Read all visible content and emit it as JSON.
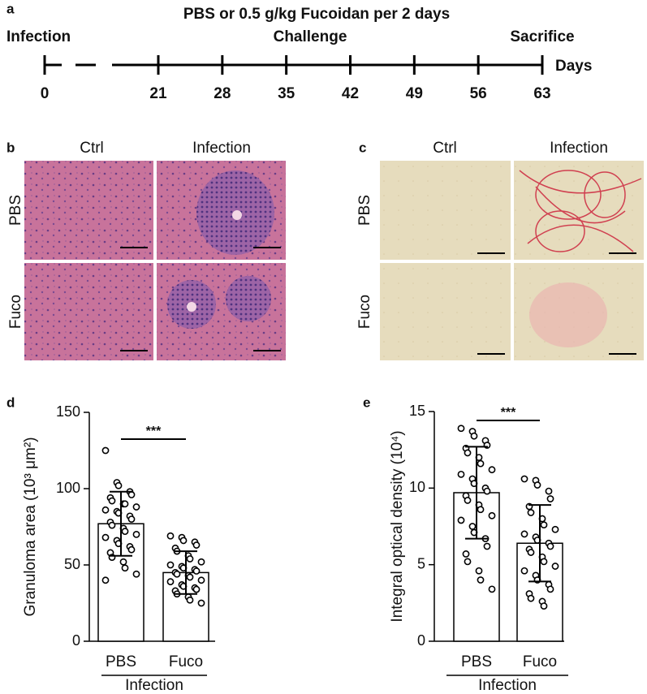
{
  "panel_a": {
    "label": "a",
    "title": "PBS or 0.5 g/kg Fucoidan per 2 days",
    "phases": [
      "Infection",
      "Challenge",
      "Sacrifice"
    ],
    "axis_label": "Days",
    "days": [
      0,
      21,
      28,
      35,
      42,
      49,
      56,
      63
    ]
  },
  "panel_b": {
    "label": "b",
    "columns": [
      "Ctrl",
      "Infection"
    ],
    "rows": [
      "PBS",
      "Fuco"
    ]
  },
  "panel_c": {
    "label": "c",
    "columns": [
      "Ctrl",
      "Infection"
    ],
    "rows": [
      "PBS",
      "Fuco"
    ]
  },
  "chart_data": [
    {
      "type": "bar",
      "label": "d",
      "ylabel": "Granuloma area (10³ μm²)",
      "categories": [
        "PBS",
        "Fuco"
      ],
      "group_label": "Infection",
      "values": [
        77,
        45
      ],
      "errors": [
        21,
        14
      ],
      "color": "#ffffff",
      "ylim": [
        0,
        150
      ],
      "yticks": [
        0,
        50,
        100,
        150
      ],
      "significance": "***",
      "points": [
        [
          125,
          104,
          102,
          98,
          96,
          94,
          92,
          90,
          90,
          88,
          86,
          85,
          84,
          82,
          80,
          78,
          76,
          74,
          72,
          70,
          68,
          66,
          64,
          62,
          60,
          58,
          55,
          52,
          48,
          44,
          40
        ],
        [
          69,
          68,
          66,
          65,
          63,
          61,
          59,
          56,
          54,
          52,
          50,
          49,
          48,
          47,
          46,
          45,
          44,
          43,
          42,
          40,
          39,
          37,
          36,
          35,
          34,
          33,
          31,
          29,
          27,
          25
        ]
      ]
    },
    {
      "type": "bar",
      "label": "e",
      "ylabel": "Integral optical density (10⁴)",
      "categories": [
        "PBS",
        "Fuco"
      ],
      "group_label": "Infection",
      "values": [
        9.7,
        6.4
      ],
      "errors": [
        3.0,
        2.5
      ],
      "color": "#ffffff",
      "ylim": [
        0,
        15
      ],
      "yticks": [
        0,
        5,
        10,
        15
      ],
      "significance": "***",
      "points": [
        [
          13.9,
          13.7,
          13.4,
          13.1,
          12.8,
          12.6,
          12.3,
          12.0,
          11.6,
          11.2,
          10.9,
          10.6,
          10.3,
          10.0,
          9.8,
          9.5,
          9.2,
          8.9,
          8.6,
          8.2,
          7.9,
          7.5,
          7.1,
          6.7,
          6.2,
          5.7,
          5.2,
          4.6,
          4.0,
          3.4
        ],
        [
          10.6,
          10.5,
          10.2,
          9.8,
          9.3,
          8.8,
          8.4,
          8.0,
          7.6,
          7.3,
          7.0,
          6.8,
          6.6,
          6.4,
          6.2,
          6.0,
          5.8,
          5.5,
          5.2,
          4.9,
          4.6,
          4.3,
          4.0,
          3.7,
          3.4,
          3.1,
          2.8,
          2.6,
          2.3
        ]
      ]
    }
  ]
}
